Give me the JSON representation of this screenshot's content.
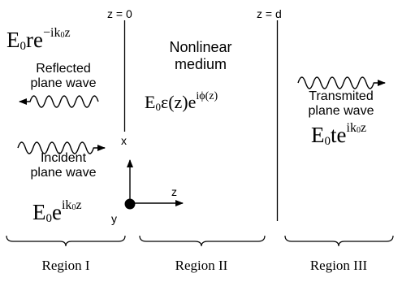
{
  "boundaries": {
    "left_label": "z = 0",
    "right_label": "z = d"
  },
  "region1": {
    "reflected_field": {
      "base": "E",
      "sub": "0",
      "body": "re",
      "exp": "−ik",
      "exp_sub": "0",
      "exp_tail": "z"
    },
    "reflected_caption_line1": "Reflected",
    "reflected_caption_line2": "plane wave",
    "incident_caption_line1": "Incident",
    "incident_caption_line2": "plane wave",
    "incident_field": {
      "base": "E",
      "sub": "0",
      "body": "e",
      "exp": "ik",
      "exp_sub": "0",
      "exp_tail": "z"
    },
    "name": "Region I"
  },
  "region2": {
    "medium_line1": "Nonlinear",
    "medium_line2": "medium",
    "field": {
      "base": "E",
      "sub": "0",
      "body": "ε(z)e",
      "exp": "iϕ(z)"
    },
    "name": "Region II"
  },
  "region3": {
    "transmitted_caption_line1": "Transmited",
    "transmitted_caption_line2": "plane wave",
    "field": {
      "base": "E",
      "sub": "0",
      "body": "te",
      "exp": "ik",
      "exp_sub": "0",
      "exp_tail": "z"
    },
    "name": "Region III"
  },
  "axes": {
    "x_label": "x",
    "y_label": "y",
    "z_label": "z"
  }
}
